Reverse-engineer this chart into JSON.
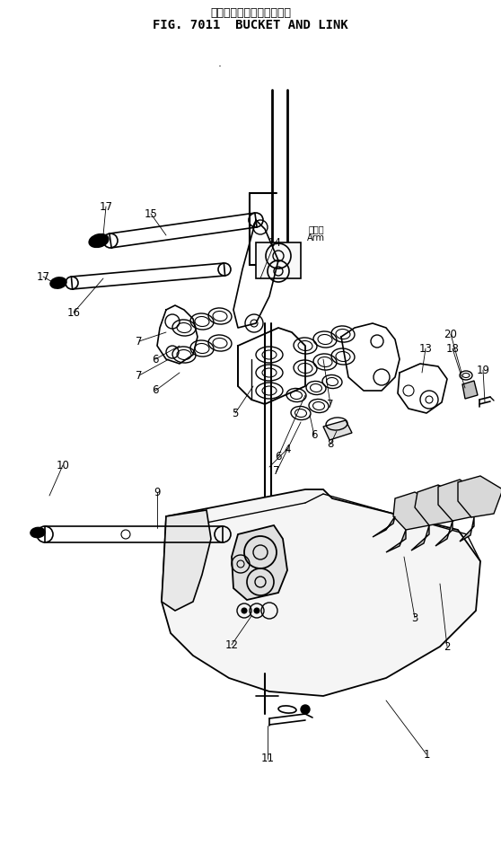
{
  "title_japanese": "バケット　および　リンク",
  "title_english": "FIG. 7011  BUCKET AND LINK",
  "arm_label_jp": "アーム",
  "arm_label_en": "Arm",
  "bg_color": "#ffffff",
  "line_color": "#000000",
  "fig_width": 5.58,
  "fig_height": 9.61,
  "dpi": 100
}
